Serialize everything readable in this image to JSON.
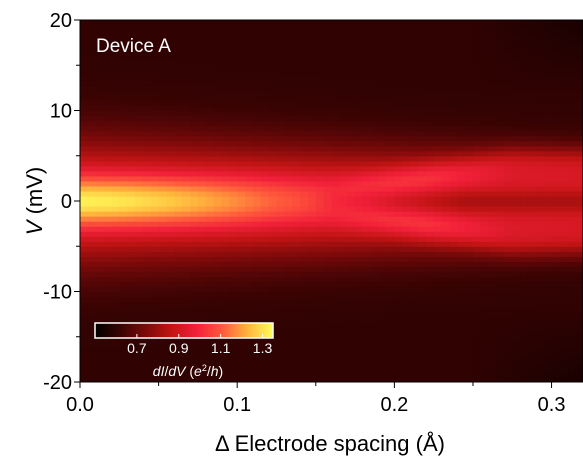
{
  "chart_data": {
    "type": "heatmap",
    "panel_label": "Device A",
    "xlabel": "Δ Electrode spacing (Å)",
    "ylabel_var": "V",
    "ylabel_unit": " (mV)",
    "xlim": [
      0.0,
      0.32
    ],
    "ylim": [
      -20,
      20
    ],
    "xticks": [
      {
        "value": 0.0,
        "label": "0.0"
      },
      {
        "value": 0.1,
        "label": "0.1"
      },
      {
        "value": 0.2,
        "label": "0.2"
      },
      {
        "value": 0.3,
        "label": "0.3"
      }
    ],
    "yticks": [
      {
        "value": 20,
        "label": "20"
      },
      {
        "value": 10,
        "label": "10"
      },
      {
        "value": 0,
        "label": "0"
      },
      {
        "value": -10,
        "label": "-10"
      },
      {
        "value": -20,
        "label": "-20"
      }
    ],
    "colorbar": {
      "label": "dI/dV (e²/h)",
      "min": 0.5,
      "max": 1.35,
      "ticks": [
        {
          "value": 0.7,
          "label": "0.7"
        },
        {
          "value": 0.9,
          "label": "0.9"
        },
        {
          "value": 1.1,
          "label": "1.1"
        },
        {
          "value": 1.3,
          "label": "1.3"
        }
      ],
      "colors": [
        "#000000",
        "#3a0303",
        "#7d0a0a",
        "#c21414",
        "#f2203a",
        "#ff5a3c",
        "#ffb33c",
        "#ffff5a"
      ]
    },
    "features": {
      "background": 0.6,
      "zero_bias_peak": {
        "x_range": [
          0.0,
          0.16
        ],
        "peak_value": 1.33,
        "v_width": 2.6
      },
      "split_peaks": {
        "start_x": 0.12,
        "max_splitting_mV": 4.5,
        "peak_value": 1.1
      },
      "band": {
        "v_halfwidth_start": 6,
        "v_halfwidth_end": 4,
        "value": 1.0
      }
    }
  }
}
